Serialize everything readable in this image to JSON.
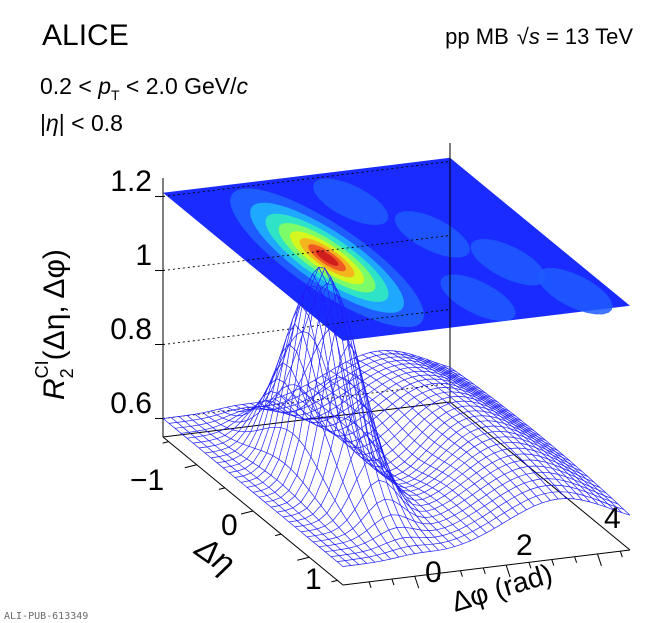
{
  "chart_data": {
    "type": "surface",
    "experiment": "ALICE",
    "system": "pp MB",
    "energy_prefix": "√",
    "energy_var": "s",
    "energy_value": " = 13 TeV",
    "cut_pt_left": "0.2 < ",
    "cut_pt_var": "p",
    "cut_pt_sub": "T",
    "cut_pt_right": " < 2.0 GeV/",
    "cut_pt_unit": "c",
    "cut_eta_left": "|",
    "cut_eta_var": "η",
    "cut_eta_right": "| < 0.8",
    "zlabel_main": "R",
    "zlabel_sub": "2",
    "zlabel_sup": "CI",
    "zlabel_args": "(Δη, Δφ)",
    "xlabel": "Δφ (rad)",
    "ylabel": "Δη",
    "zticks": [
      "0.6",
      "0.8",
      "1",
      "1.2"
    ],
    "zlim": [
      0.55,
      1.25
    ],
    "xticks": [
      "0",
      "2",
      "4"
    ],
    "xlim": [
      -1.571,
      4.712
    ],
    "yticks": [
      "−1",
      "0",
      "1"
    ],
    "ylim": [
      -1.6,
      1.6
    ],
    "peak": {
      "dphi": 0,
      "deta": 0,
      "value": 1.18
    },
    "baseline": 0.6,
    "away_side": {
      "dphi": 3.14,
      "value": 0.75
    },
    "surface_color": "#1f1fff",
    "projection_colormap": [
      "#1a2bff",
      "#1e5cff",
      "#1fa8ff",
      "#2fe3c7",
      "#7dfc6a",
      "#d4f71f",
      "#f5b51c",
      "#f05a23",
      "#d01e1e"
    ],
    "publication_id": "ALI-PUB-613349"
  }
}
